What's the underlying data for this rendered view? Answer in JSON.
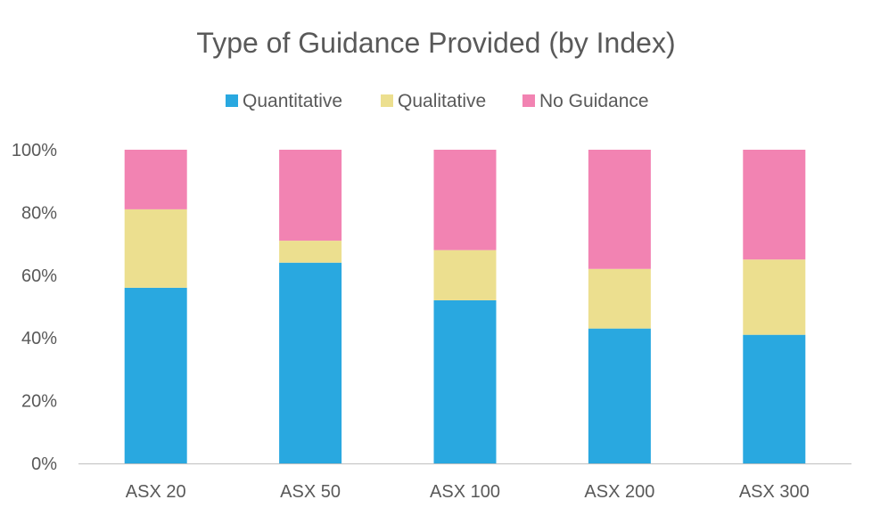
{
  "chart_data": {
    "type": "bar",
    "stacked": true,
    "title": "Type of Guidance Provided (by Index)",
    "xlabel": "",
    "ylabel": "",
    "categories": [
      "ASX 20",
      "ASX 50",
      "ASX 100",
      "ASX 200",
      "ASX 300"
    ],
    "series": [
      {
        "name": "Quantitative",
        "color": "#29a8e0",
        "values": [
          56,
          64,
          52,
          43,
          41
        ]
      },
      {
        "name": "Qualitative",
        "color": "#ecdf8f",
        "values": [
          25,
          7,
          16,
          19,
          24
        ]
      },
      {
        "name": "No Guidance",
        "color": "#f283b2",
        "values": [
          19,
          29,
          32,
          38,
          35
        ]
      }
    ],
    "ylim": [
      0,
      100
    ],
    "yticks": [
      "0%",
      "20%",
      "40%",
      "60%",
      "80%",
      "100%"
    ],
    "grid": false,
    "legend_position": "top"
  }
}
